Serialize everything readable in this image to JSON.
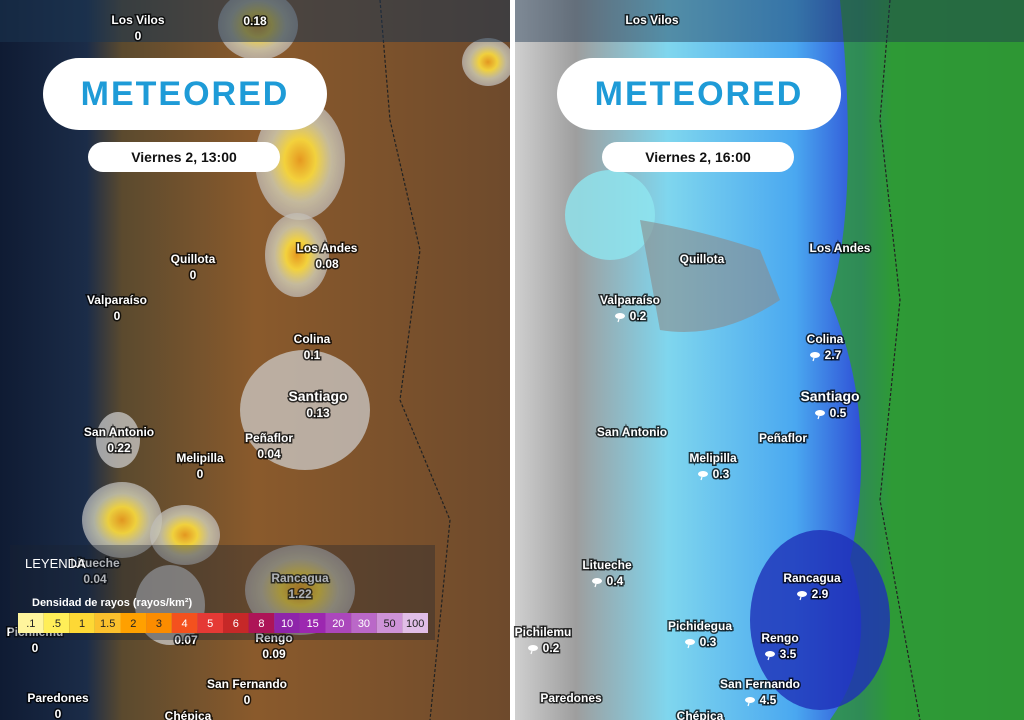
{
  "panels": [
    {
      "brand": "METEORED",
      "time": "Viernes 2, 13:00",
      "places": [
        {
          "name": "Los Vilos",
          "value": 0
        },
        {
          "value": 0.18
        },
        {
          "name": "Quillota",
          "value": 0
        },
        {
          "name": "Valparaíso",
          "value": 0
        },
        {
          "name": "Los Andes",
          "value": 0.08
        },
        {
          "name": "Colina",
          "value": 0.1
        },
        {
          "name": "Santiago",
          "value": 0.13
        },
        {
          "name": "San Antonio",
          "value": 0.22
        },
        {
          "name": "Peñaflor",
          "value": 0.04
        },
        {
          "name": "Melipilla",
          "value": 0
        },
        {
          "name": "Litueche",
          "value": 0.04
        },
        {
          "name": "Rancagua",
          "value": 1.22
        },
        {
          "name": "Pichilemu",
          "value": 0
        },
        {
          "value": 0.07
        },
        {
          "name": "Rengo",
          "value": 0.09
        },
        {
          "name": "San Fernando",
          "value": 0
        },
        {
          "name": "Paredones",
          "value": 0
        },
        {
          "name": "Chépica"
        }
      ],
      "legend": {
        "title": "LEYENDA",
        "subtitle": "Densidad de rayos (rayos/km²)",
        "scale": [
          {
            "value": 0.1,
            "label": ".1",
            "color": "#fff59d"
          },
          {
            "value": 0.5,
            "label": ".5",
            "color": "#ffee58"
          },
          {
            "value": 1,
            "color": "#fdd835"
          },
          {
            "value": 1.5,
            "color": "#fbc02d"
          },
          {
            "value": 2,
            "color": "#ffa000"
          },
          {
            "value": 3,
            "color": "#fb8c00"
          },
          {
            "value": 4,
            "color": "#f4511e"
          },
          {
            "value": 5,
            "color": "#e53935"
          },
          {
            "value": 6,
            "color": "#c62828"
          },
          {
            "value": 8,
            "color": "#ad1457"
          },
          {
            "value": 10,
            "color": "#8e24aa"
          },
          {
            "value": 15,
            "color": "#9c27b0"
          },
          {
            "value": 20,
            "color": "#ab47bc"
          },
          {
            "value": 30,
            "color": "#ba68c8"
          },
          {
            "value": 50,
            "color": "#ce93d8"
          },
          {
            "value": 100,
            "color": "#e1bee7"
          }
        ]
      }
    },
    {
      "brand": "METEORED",
      "time": "Viernes 2, 16:00",
      "places": [
        {
          "name": "Los Vilos"
        },
        {
          "name": "Quillota"
        },
        {
          "name": "Valparaíso",
          "value": 0.2
        },
        {
          "name": "Los Andes"
        },
        {
          "name": "Colina",
          "value": 2.7
        },
        {
          "name": "Santiago",
          "value": 0.5
        },
        {
          "name": "San Antonio"
        },
        {
          "name": "Peñaflor"
        },
        {
          "name": "Melipilla",
          "value": 0.3
        },
        {
          "name": "Litueche",
          "value": 0.4
        },
        {
          "name": "Rancagua",
          "value": 2.9
        },
        {
          "name": "Pichidegua",
          "value": 0.3
        },
        {
          "name": "Pichilemu",
          "value": 0.2
        },
        {
          "name": "Rengo",
          "value": 3.5
        },
        {
          "name": "San Fernando",
          "value": 4.5
        },
        {
          "name": "Paredones"
        },
        {
          "name": "Chépica"
        }
      ]
    }
  ]
}
